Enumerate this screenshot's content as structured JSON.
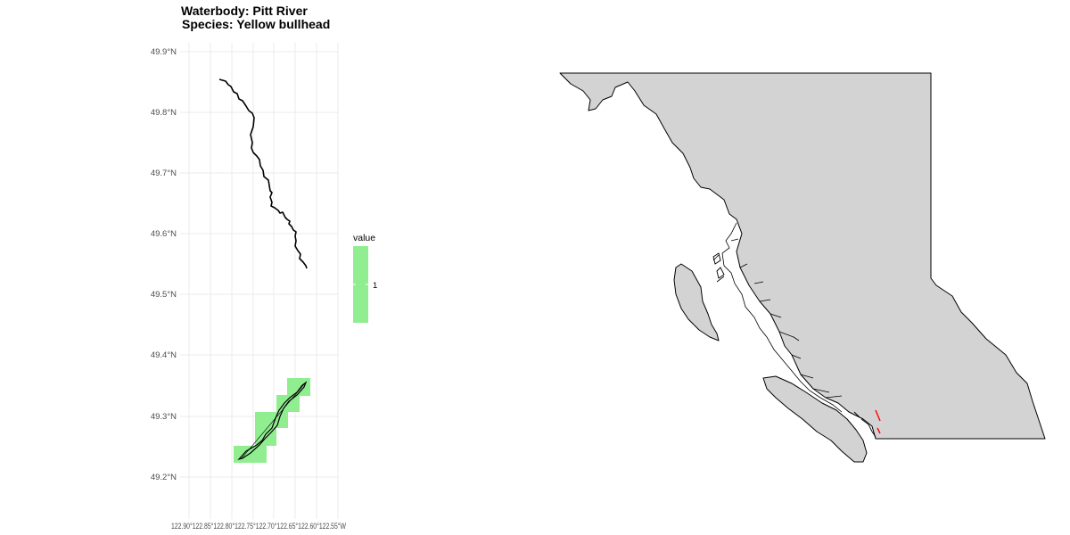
{
  "map_panel": {
    "title_lines": [
      "Waterbody: Pitt River",
      "Species: Yellow bullhead"
    ],
    "y_ticks": [
      "49.9°N",
      "49.8°N",
      "49.7°N",
      "49.6°N",
      "49.5°N",
      "49.4°N",
      "49.3°N",
      "49.2°N"
    ],
    "x_ticks": [
      "122.90°W",
      "122.85°W",
      "122.80°W",
      "122.75°W",
      "122.70°W",
      "122.65°W",
      "122.60°W",
      "122.55°W"
    ],
    "x_tick_text": "122.90°122.85°122.80°122.75°122.70°122.65°122.60°122.55°W",
    "legend": {
      "title": "value",
      "label": "1",
      "fill": "#90ee90"
    },
    "colors": {
      "grid": "#ebebeb",
      "river": "#000000",
      "cells": "#90ee90"
    }
  },
  "inset_map": {
    "province_fill": "#d3d3d3",
    "outline": "#000000",
    "highlight": "#ff0000"
  }
}
